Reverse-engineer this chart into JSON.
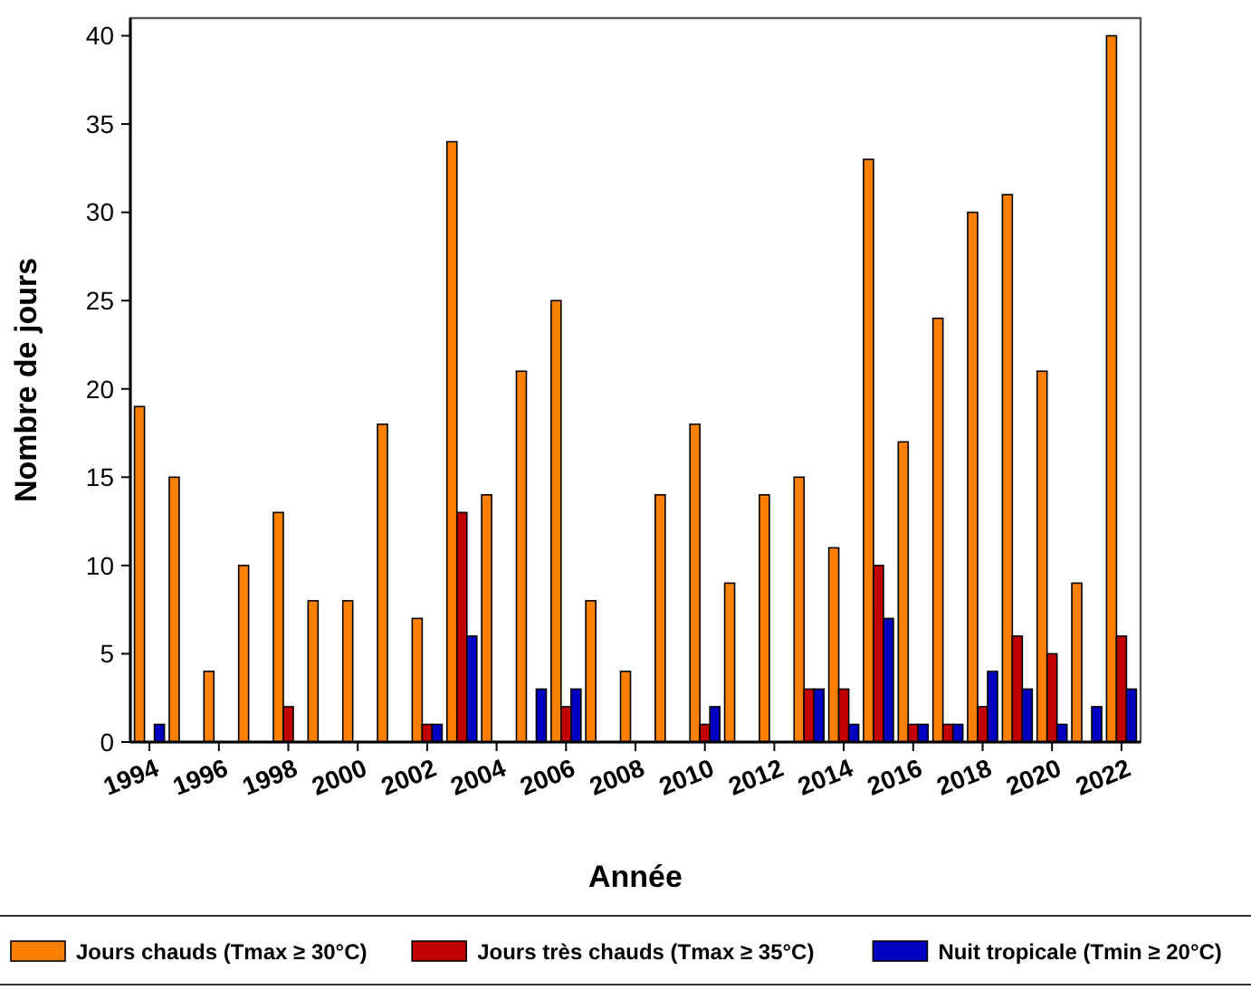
{
  "chart_data": {
    "type": "bar",
    "xlabel": "Année",
    "ylabel": "Nombre de jours",
    "categories": [
      "1994",
      null,
      "1996",
      null,
      "1998",
      null,
      "2000",
      null,
      "2002",
      null,
      "2004",
      null,
      "2006",
      null,
      "2008",
      null,
      "2010",
      null,
      "2012",
      null,
      "2014",
      null,
      "2016",
      null,
      "2018",
      null,
      "2020",
      null,
      "2022"
    ],
    "series": [
      {
        "name": "Jours chauds (Tmax ≥ 30°C)",
        "color": "#ff8000",
        "values": [
          19,
          15,
          4,
          10,
          13,
          8,
          8,
          18,
          7,
          34,
          14,
          21,
          25,
          8,
          4,
          14,
          18,
          9,
          14,
          15,
          11,
          33,
          17,
          24,
          30,
          31,
          21,
          9,
          40
        ]
      },
      {
        "name": "Jours très chauds (Tmax ≥ 35°C)",
        "color": "#c00000",
        "values": [
          0,
          0,
          0,
          0,
          2,
          0,
          0,
          0,
          1,
          13,
          0,
          0,
          2,
          0,
          0,
          0,
          1,
          0,
          0,
          3,
          3,
          10,
          1,
          1,
          2,
          6,
          5,
          0,
          6
        ]
      },
      {
        "name": "Nuit tropicale (Tmin ≥ 20°C)",
        "color": "#0000c0",
        "values": [
          1,
          0,
          0,
          0,
          0,
          0,
          0,
          0,
          1,
          6,
          0,
          3,
          3,
          0,
          0,
          0,
          2,
          0,
          0,
          3,
          1,
          7,
          1,
          1,
          4,
          3,
          1,
          2,
          3
        ]
      }
    ],
    "ylim": [
      0,
      41
    ],
    "yticks": [
      0,
      5,
      10,
      15,
      20,
      25,
      30,
      35,
      40
    ],
    "grid": false,
    "legend": "bottom"
  }
}
